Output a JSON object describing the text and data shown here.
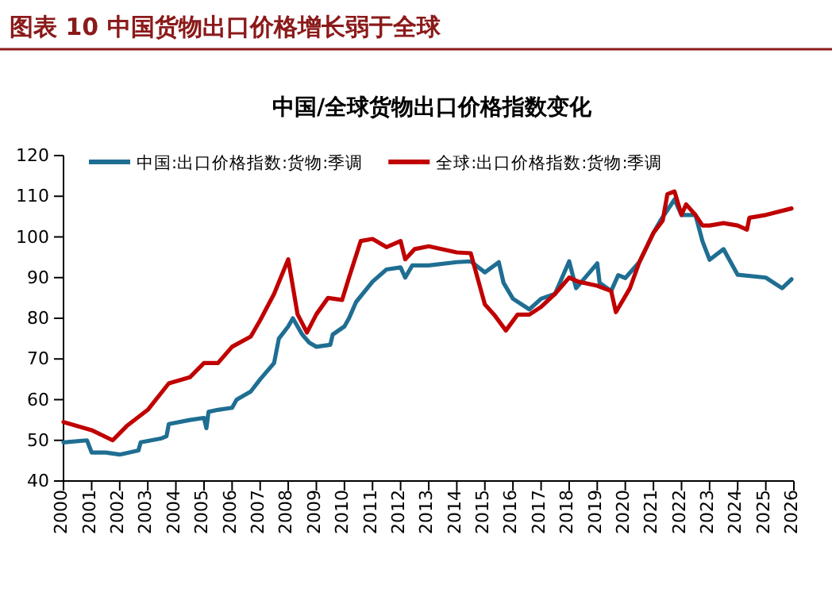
{
  "chart_data": {
    "type": "line",
    "title": "中国/全球货物出口价格指数变化",
    "subtitle": "图表 10   中国货物出口价格增长弱于全球",
    "xlim": [
      "2000-01",
      "2026-01"
    ],
    "xticks": [
      "2000",
      "2001",
      "2002",
      "2003",
      "2004",
      "2005",
      "2006",
      "2007",
      "2008",
      "2009",
      "2010",
      "2011",
      "2012",
      "2013",
      "2014",
      "2015",
      "2016",
      "2017",
      "2018",
      "2019",
      "2020",
      "2021",
      "2022",
      "2023",
      "2024",
      "2025",
      "2026"
    ],
    "ylim": [
      40,
      120
    ],
    "yticks": [
      40,
      50,
      60,
      70,
      80,
      90,
      100,
      110,
      120
    ],
    "grid": false,
    "legend": "top",
    "line_style": "solid",
    "marker": "none",
    "series": [
      {
        "name": "中国:出口价格指数:货物:季调",
        "color": "#1f6e92",
        "x": [
          "2000-01",
          "2000-11",
          "2001-01",
          "2001-07",
          "2002-01",
          "2002-09",
          "2002-10",
          "2003-07",
          "2003-09",
          "2003-10",
          "2004-07",
          "2005-01",
          "2005-02",
          "2005-03",
          "2005-07",
          "2006-01",
          "2006-03",
          "2006-09",
          "2007-01",
          "2007-07",
          "2007-09",
          "2008-01",
          "2008-03",
          "2008-07",
          "2008-10",
          "2009-01",
          "2009-07",
          "2009-08",
          "2010-01",
          "2010-03",
          "2010-06",
          "2011-01",
          "2011-07",
          "2012-01",
          "2012-03",
          "2012-06",
          "2013-01",
          "2014-01",
          "2014-07",
          "2015-01",
          "2015-07",
          "2015-09",
          "2016-01",
          "2016-08",
          "2017-01",
          "2017-07",
          "2018-01",
          "2018-04",
          "2019-01",
          "2019-02",
          "2019-07",
          "2019-10",
          "2020-01",
          "2020-07",
          "2021-01",
          "2021-04",
          "2021-10",
          "2022-01",
          "2022-07",
          "2022-10",
          "2023-01",
          "2023-07",
          "2024-01",
          "2025-01",
          "2025-08",
          "2025-12"
        ],
        "values": [
          49.5,
          50,
          47,
          47,
          46.5,
          47.5,
          49.5,
          50.5,
          51,
          54,
          55,
          55.5,
          53,
          57,
          57.5,
          58,
          60,
          62,
          65,
          69,
          75,
          78,
          80,
          76,
          74,
          73,
          73.5,
          76,
          78,
          80,
          84,
          89,
          92,
          92.5,
          90,
          93,
          93,
          93.8,
          94,
          91.3,
          93.8,
          88.7,
          84.8,
          82.2,
          84.8,
          86,
          94,
          87.4,
          93.5,
          88.7,
          86.7,
          90.6,
          89.9,
          93.8,
          101,
          104,
          109.2,
          105.4,
          105.4,
          98.9,
          94.4,
          97,
          90.7,
          90,
          87.4,
          89.6
        ]
      },
      {
        "name": "全球:出口价格指数:货物:季调",
        "color": "#c00000",
        "x": [
          "2000-01",
          "2001-01",
          "2001-10",
          "2002-04",
          "2003-01",
          "2003-10",
          "2004-07",
          "2005-01",
          "2005-07",
          "2006-01",
          "2006-09",
          "2007-01",
          "2007-07",
          "2008-01",
          "2008-05",
          "2008-09",
          "2009-01",
          "2009-06",
          "2009-12",
          "2010-03",
          "2010-08",
          "2011-01",
          "2011-07",
          "2012-01",
          "2012-03",
          "2012-07",
          "2013-01",
          "2014-01",
          "2014-07",
          "2015-01",
          "2015-05",
          "2015-10",
          "2016-03",
          "2016-08",
          "2017-01",
          "2017-07",
          "2018-01",
          "2018-05",
          "2019-01",
          "2019-07",
          "2019-09",
          "2020-03",
          "2020-07",
          "2021-01",
          "2021-05",
          "2021-07",
          "2021-10",
          "2022-01",
          "2022-03",
          "2022-07",
          "2022-10",
          "2023-01",
          "2023-07",
          "2024-01",
          "2024-05",
          "2024-06",
          "2025-01",
          "2025-12"
        ],
        "values": [
          54.5,
          52.5,
          50,
          53.5,
          57.5,
          64,
          65.5,
          69,
          69,
          73,
          75.5,
          79.5,
          86,
          94.5,
          81,
          76.5,
          81,
          85,
          84.5,
          90,
          99,
          99.5,
          97.5,
          99,
          94.5,
          97,
          97.7,
          96.2,
          96,
          83.4,
          80.9,
          77,
          80.9,
          80.9,
          82.8,
          86,
          90,
          89,
          88,
          86.7,
          81.5,
          87.4,
          93.8,
          101,
          104,
          110.5,
          111.2,
          105.4,
          108,
          105.4,
          102.8,
          102.8,
          103.4,
          102.8,
          101.8,
          104.7,
          105.4,
          107
        ]
      }
    ]
  }
}
